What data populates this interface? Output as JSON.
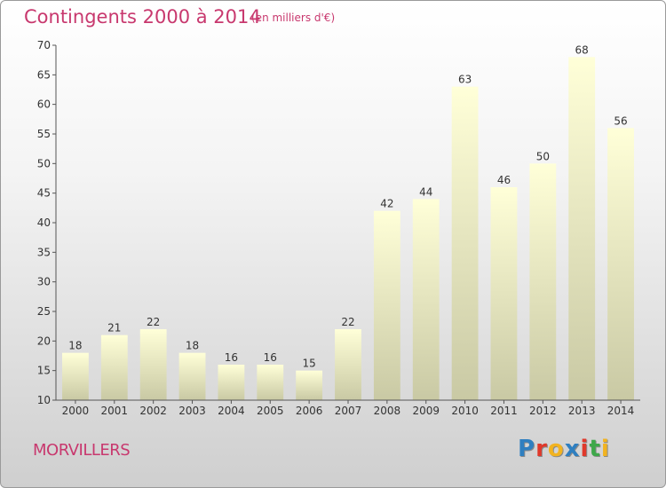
{
  "header": {
    "title": "Contingents 2000 à 2014",
    "subtitle": "(en milliers d'€)"
  },
  "footer": {
    "commune": "MORVILLERS",
    "logo_letters": [
      "P",
      "r",
      "o",
      "x",
      "i",
      "t",
      "i"
    ]
  },
  "colors": {
    "title": "#c8386e",
    "bar_top": "#ffffd8",
    "bar_bottom": "#c9c9a4",
    "logo": [
      "#2f7fc0",
      "#e0392b",
      "#f2b320",
      "#2f7fc0",
      "#e0392b",
      "#3ea84a",
      "#f2b320"
    ]
  },
  "chart_data": {
    "type": "bar",
    "categories": [
      "2000",
      "2001",
      "2002",
      "2003",
      "2004",
      "2005",
      "2006",
      "2007",
      "2008",
      "2009",
      "2010",
      "2011",
      "2012",
      "2013",
      "2014"
    ],
    "values": [
      18,
      21,
      22,
      18,
      16,
      16,
      15,
      22,
      42,
      44,
      63,
      46,
      50,
      68,
      56
    ],
    "title": "Contingents 2000 à 2014",
    "subtitle": "(en milliers d'€)",
    "xlabel": "",
    "ylabel": "",
    "ylim": [
      10,
      70
    ],
    "yticks": [
      10,
      15,
      20,
      25,
      30,
      35,
      40,
      45,
      50,
      55,
      60,
      65,
      70
    ],
    "grid": false,
    "data_labels": true
  }
}
